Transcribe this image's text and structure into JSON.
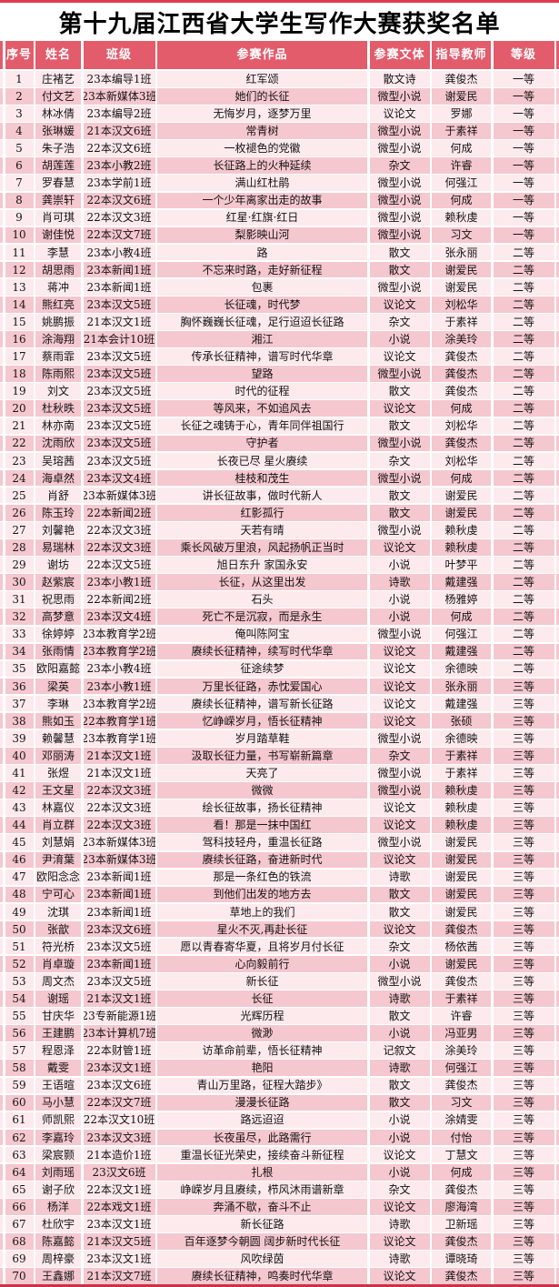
{
  "page": {
    "title": "第十九届江西省大学生写作大赛获奖名单"
  },
  "colors": {
    "top_bar": "#e23750",
    "header_bg": "#e25c6c",
    "row_dark": "#f5c7cf",
    "row_light": "#fdeaed",
    "bottom_bar": "#c93247",
    "text": "#141414",
    "header_text": "#ffffff"
  },
  "table": {
    "columns": [
      "序号",
      "姓名",
      "班级",
      "参赛作品",
      "参赛文体",
      "指导教师",
      "等级"
    ],
    "rows": [
      [
        "1",
        "庄褚艺",
        "23本编导1班",
        "红军颂",
        "散文诗",
        "龚俊杰",
        "一等"
      ],
      [
        "2",
        "付文艺",
        "23本新媒体3班",
        "她们的长征",
        "微型小说",
        "谢爱民",
        "一等"
      ],
      [
        "3",
        "林冰倩",
        "23本编导2班",
        "无悔岁月，逐梦万里",
        "议论文",
        "罗娜",
        "一等"
      ],
      [
        "4",
        "张琳媛",
        "21本汉文6班",
        "常青树",
        "微型小说",
        "于素祥",
        "一等"
      ],
      [
        "5",
        "朱子浩",
        "22本汉文6班",
        "一枚褪色的党徽",
        "微型小说",
        "何成",
        "一等"
      ],
      [
        "6",
        "胡莲莲",
        "23本小教2班",
        "长征路上的火种延续",
        "杂文",
        "许睿",
        "一等"
      ],
      [
        "7",
        "罗春慧",
        "23本学前1班",
        "满山红杜鹃",
        "微型小说",
        "何强江",
        "一等"
      ],
      [
        "8",
        "龚崇轩",
        "22本汉文6班",
        "一个少年离家出走的故事",
        "微型小说",
        "何成",
        "一等"
      ],
      [
        "9",
        "肖可琪",
        "22本汉文3班",
        "红星·红旗·红日",
        "微型小说",
        "赖秋虔",
        "一等"
      ],
      [
        "10",
        "谢佳悦",
        "22本汉文7班",
        "梨影映山河",
        "微型小说",
        "习文",
        "一等"
      ],
      [
        "11",
        "李慧",
        "23本小教4班",
        "路",
        "散文",
        "张永丽",
        "二等"
      ],
      [
        "12",
        "胡思雨",
        "23本新闻1班",
        "不忘来时路，走好新征程",
        "散文",
        "谢爱民",
        "二等"
      ],
      [
        "13",
        "蒋冲",
        "23本新闻1班",
        "包裹",
        "微型小说",
        "谢爱民",
        "二等"
      ],
      [
        "14",
        "熊红亮",
        "23本汉文5班",
        "长征魂，时代梦",
        "议论文",
        "刘松华",
        "二等"
      ],
      [
        "15",
        "姚鹏振",
        "21本汉文1班",
        "胸怀巍巍长征魂，足行迢迢长征路",
        "杂文",
        "于素祥",
        "二等"
      ],
      [
        "16",
        "涂海翔",
        "21本会计10班",
        "湘江",
        "小说",
        "涂美玲",
        "二等"
      ],
      [
        "17",
        "蔡雨霏",
        "23本汉文5班",
        "传承长征精神，谱写时代华章",
        "议论文",
        "龚俊杰",
        "二等"
      ],
      [
        "18",
        "陈雨熙",
        "23本汉文5班",
        "望路",
        "微型小说",
        "龚俊杰",
        "二等"
      ],
      [
        "19",
        "刘文",
        "23本汉文5班",
        "时代的征程",
        "散文",
        "龚俊杰",
        "二等"
      ],
      [
        "20",
        "杜秋昳",
        "23本汉文5班",
        "等风来，不如追风去",
        "议论文",
        "何成",
        "二等"
      ],
      [
        "21",
        "林亦南",
        "23本汉文5班",
        "长征之魂铸于心，青年同伴祖国行",
        "散文",
        "刘松华",
        "二等"
      ],
      [
        "22",
        "沈雨欣",
        "23本汉文5班",
        "守护者",
        "微型小说",
        "龚俊杰",
        "二等"
      ],
      [
        "23",
        "吴瑢茜",
        "23本汉文5班",
        "长夜已尽 星火赓续",
        "杂文",
        "刘松华",
        "二等"
      ],
      [
        "24",
        "海卓然",
        "23本汉文4班",
        "桂枝和茂生",
        "微型小说",
        "何成",
        "二等"
      ],
      [
        "25",
        "肖舒",
        "23本新媒体3班",
        "讲长征故事，做时代新人",
        "散文",
        "谢爱民",
        "二等"
      ],
      [
        "26",
        "陈玉玲",
        "22本新闻2班",
        "红影孤行",
        "散文",
        "谢爱民",
        "二等"
      ],
      [
        "27",
        "刘馨艳",
        "22本汉文3班",
        "天若有晴",
        "微型小说",
        "赖秋虔",
        "二等"
      ],
      [
        "28",
        "易瑞林",
        "22本汉文3班",
        "乘长风破万里浪，风起扬帆正当时",
        "议论文",
        "赖秋虔",
        "二等"
      ],
      [
        "29",
        "谢坊",
        "22本汉文5班",
        "旭日东升 家国永安",
        "小说",
        "叶梦平",
        "二等"
      ],
      [
        "30",
        "赵紫宸",
        "23本小教1班",
        "长征，从这里出发",
        "诗歌",
        "戴建强",
        "二等"
      ],
      [
        "31",
        "祝思雨",
        "22本新闻2班",
        "石头",
        "小说",
        "杨雅婷",
        "二等"
      ],
      [
        "32",
        "高梦意",
        "23本汉文4班",
        "死亡不是沉寂，而是永生",
        "小说",
        "何成",
        "二等"
      ],
      [
        "33",
        "徐婷婷",
        "23本教育学2班",
        "俺叫陈阿宝",
        "微型小说",
        "何强江",
        "二等"
      ],
      [
        "34",
        "张雨情",
        "23本教育学2班",
        "赓续长征精神，续写时代华章",
        "议论文",
        "戴建强",
        "二等"
      ],
      [
        "35",
        "欧阳嘉懿",
        "23本小教4班",
        "征途续梦",
        "议论文",
        "余德映",
        "二等"
      ],
      [
        "36",
        "梁英",
        "23本小教1班",
        "万里长征路，赤忱爱国心",
        "议论文",
        "张永丽",
        "三等"
      ],
      [
        "37",
        "李琳",
        "23本教育学2班",
        "赓续长征精神，谱写新长征路",
        "议论文",
        "戴建强",
        "三等"
      ],
      [
        "38",
        "熊如玉",
        "22本教育学1班",
        "忆峥嵘岁月，悟长征精神",
        "议论文",
        "张硕",
        "三等"
      ],
      [
        "39",
        "赖馨慧",
        "23本教育学1班",
        "岁月踏草鞋",
        "微型小说",
        "余德映",
        "三等"
      ],
      [
        "40",
        "邓丽涛",
        "21本汉文1班",
        "汲取长征力量，书写崭新篇章",
        "杂文",
        "于素祥",
        "三等"
      ],
      [
        "41",
        "张煜",
        "21本汉文1班",
        "天亮了",
        "微型小说",
        "于素祥",
        "三等"
      ],
      [
        "42",
        "王文星",
        "22本汉文3班",
        "微微",
        "微型小说",
        "赖秋虔",
        "三等"
      ],
      [
        "43",
        "林嘉仪",
        "22本汉文3班",
        "绘长征故事，扬长征精神",
        "议论文",
        "赖秋虔",
        "三等"
      ],
      [
        "44",
        "肖立群",
        "22本汉文3班",
        "看！那是一抹中国红",
        "议论文",
        "赖秋虔",
        "三等"
      ],
      [
        "45",
        "刘慧娟",
        "23本新媒体3班",
        "驾科技轻舟，重温长征路",
        "微型小说",
        "谢爱民",
        "三等"
      ],
      [
        "46",
        "尹淯葉",
        "23本新媒体3班",
        "赓续长征路，奋进新时代",
        "议论文",
        "谢爱民",
        "三等"
      ],
      [
        "47",
        "欧阳念念",
        "23本新闻1班",
        "那是一条红色的铁流",
        "诗歌",
        "谢爱民",
        "三等"
      ],
      [
        "48",
        "宁可心",
        "23本新闻1班",
        "到他们出发的地方去",
        "散文",
        "谢爱民",
        "三等"
      ],
      [
        "49",
        "沈琪",
        "23本新闻1班",
        "草地上的我们",
        "散文",
        "谢爱民",
        "三等"
      ],
      [
        "50",
        "张歆",
        "23本汉文6班",
        "星火不灭,再赴长征",
        "议论文",
        "龚俊杰",
        "三等"
      ],
      [
        "51",
        "符光桥",
        "23本汉文5班",
        "愿以青春寄华夏，且将岁月付长征",
        "杂文",
        "杨依茜",
        "三等"
      ],
      [
        "52",
        "肖卓璇",
        "23本新闻1班",
        "心向毅前行",
        "小说",
        "谢爱民",
        "三等"
      ],
      [
        "53",
        "周文杰",
        "23本汉文5班",
        "新长征",
        "微型小说",
        "龚俊杰",
        "三等"
      ],
      [
        "54",
        "谢瑶",
        "21本汉文1班",
        "长征",
        "诗歌",
        "于素祥",
        "三等"
      ],
      [
        "55",
        "甘庆华",
        "23专新能源1班",
        "光辉历程",
        "散文",
        "许睿",
        "三等"
      ],
      [
        "56",
        "王建鹏",
        "23本计算机7班",
        "微渺",
        "小说",
        "冯亚男",
        "三等"
      ],
      [
        "57",
        "程恩泽",
        "22本财管1班",
        "访革命前辈，悟长征精神",
        "记叙文",
        "涂美玲",
        "三等"
      ],
      [
        "58",
        "戴雯",
        "23本汉文1班",
        "艳阳",
        "诗歌",
        "何强江",
        "三等"
      ],
      [
        "59",
        "王语暄",
        "23本汉文6班",
        "青山万里路，征程大踏步》",
        "散文",
        "龚俊杰",
        "三等"
      ],
      [
        "60",
        "马小慧",
        "22本汉文7班",
        "漫漫长征路",
        "散文",
        "习文",
        "三等"
      ],
      [
        "61",
        "师凯熙",
        "22本汉文10班",
        "路远迢迢",
        "小说",
        "涂婧雯",
        "三等"
      ],
      [
        "62",
        "李嘉玲",
        "23本汉文3班",
        "长夜虽尽，此路需行",
        "小说",
        "付怡",
        "三等"
      ],
      [
        "63",
        "梁宸颢",
        "21本造价1班",
        "重温长征光荣史，接续奋斗新征程",
        "议论文",
        "丁慧文",
        "三等"
      ],
      [
        "64",
        "刘雨瑶",
        "23汉文6班",
        "扎根",
        "小说",
        "何成",
        "三等"
      ],
      [
        "65",
        "谢子欣",
        "22本汉文1班",
        "峥嵘岁月且赓续，栉风沐雨谱新章",
        "杂文",
        "龚俊杰",
        "三等"
      ],
      [
        "66",
        "杨洋",
        "22本戏文1班",
        "奔涌不歇，奋斗不止",
        "议论文",
        "廖海湾",
        "三等"
      ],
      [
        "67",
        "杜欣宇",
        "23本汉文1班",
        "新长征路",
        "诗歌",
        "卫新瑶",
        "三等"
      ],
      [
        "68",
        "陈嘉懿",
        "21本汉文5班",
        "百年逐梦今朝圆 阔步新时代长征",
        "议论文",
        "龚俊杰",
        "三等"
      ],
      [
        "69",
        "周梓豪",
        "23本汉文1班",
        "风吹绿茵",
        "诗歌",
        "谭晓琦",
        "三等"
      ],
      [
        "70",
        "王鑫娜",
        "21本汉文7班",
        "赓续长征精神，鸣奏时代华章",
        "议论文",
        "龚俊杰",
        "三等"
      ]
    ]
  }
}
